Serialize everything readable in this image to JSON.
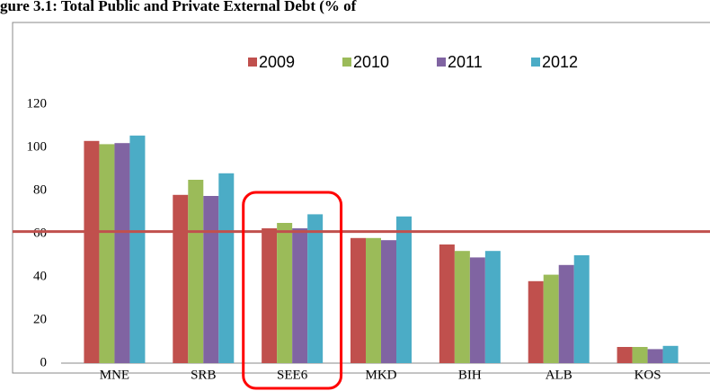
{
  "chart_data": {
    "type": "bar",
    "title": "gure 3.1: Total Public and Private External Debt (% of",
    "categories": [
      "MNE",
      "SRB",
      "SEE6",
      "MKD",
      "BIH",
      "ALB",
      "KOS"
    ],
    "series": [
      {
        "name": "2009",
        "color": "#c0504d",
        "values": [
          103,
          78,
          62.5,
          58,
          55,
          38,
          7.5
        ]
      },
      {
        "name": "2010",
        "color": "#9bbb59",
        "values": [
          101.5,
          85,
          65,
          58,
          52,
          41,
          7.5
        ]
      },
      {
        "name": "2011",
        "color": "#8064a2",
        "values": [
          102,
          77.5,
          62.5,
          57,
          49,
          45.5,
          6.5
        ]
      },
      {
        "name": "2012",
        "color": "#4bacc6",
        "values": [
          105.5,
          88,
          69,
          68,
          52,
          50,
          8
        ]
      }
    ],
    "ylim": [
      0,
      120
    ],
    "yticks": [
      0,
      20,
      40,
      60,
      80,
      100,
      120
    ],
    "reference_line": 61,
    "reference_color": "#c0504d",
    "highlight_index": 2,
    "highlight_color": "#ff0000",
    "legend": "top"
  }
}
